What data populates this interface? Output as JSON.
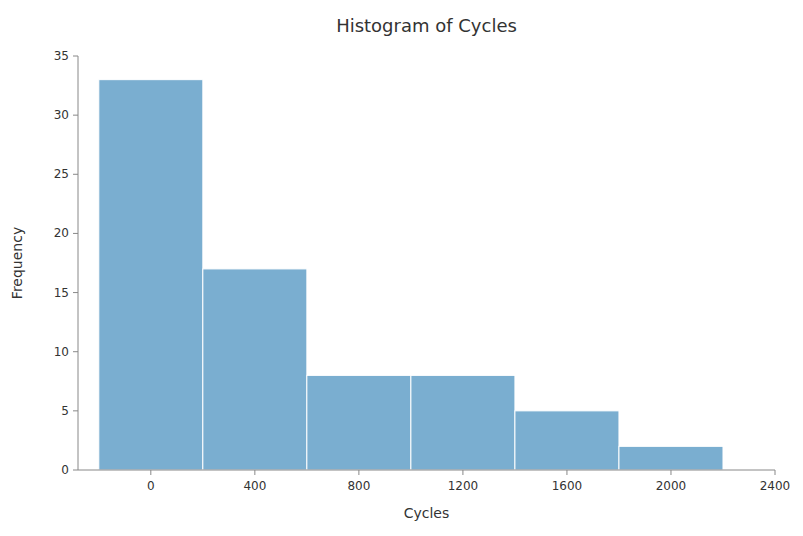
{
  "chart_data": {
    "type": "histogram",
    "title": "Histogram of Cycles",
    "x_label": "Cycles",
    "y_label": "Frequency",
    "bins": [
      -200,
      200,
      600,
      1000,
      1400,
      1800,
      2200
    ],
    "values": [
      33,
      17,
      8,
      8,
      5,
      2
    ],
    "color": "#7aaed0",
    "xlim": [
      -280,
      2400
    ],
    "xticks": [
      0,
      400,
      800,
      1200,
      1600,
      2000,
      2400
    ],
    "ylim": [
      0,
      35
    ],
    "yticks": [
      0,
      5,
      10,
      15,
      20,
      25,
      30,
      35
    ],
    "grid": false
  }
}
